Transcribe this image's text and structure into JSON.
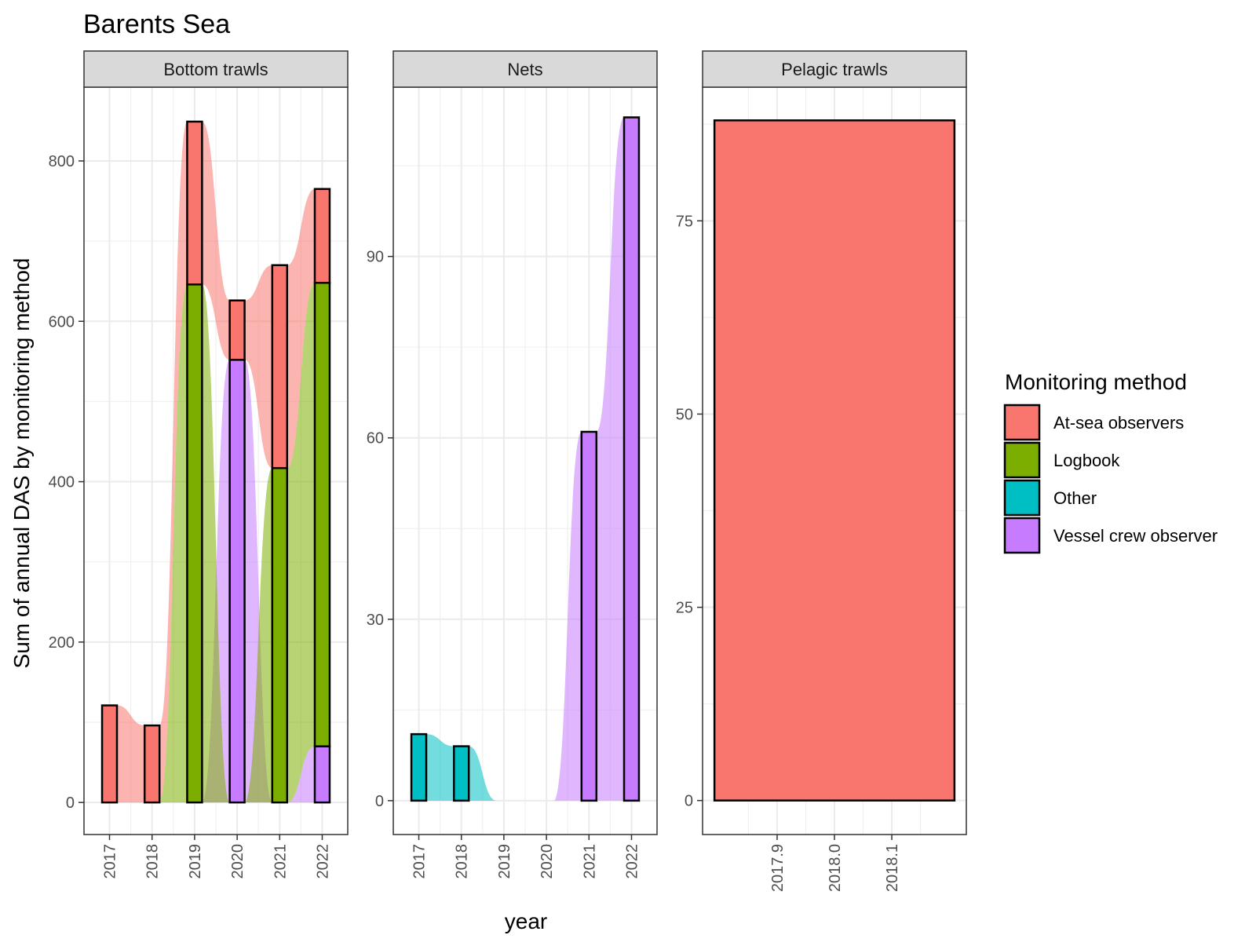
{
  "chart_data": {
    "type": "bar",
    "title": "Barents Sea",
    "xlabel": "year",
    "ylabel": "Sum of annual DAS by monitoring method",
    "legend": {
      "title": "Monitoring method",
      "position": "right",
      "entries": [
        {
          "name": "At-sea observers",
          "color": "#F8766D"
        },
        {
          "name": "Logbook",
          "color": "#7CAE00"
        },
        {
          "name": "Other",
          "color": "#00BFC4"
        },
        {
          "name": "Vessel crew observer",
          "color": "#C77CFF"
        }
      ]
    },
    "grid": true,
    "stacked": true,
    "panels": [
      {
        "strip": "Bottom trawls",
        "x_ticks": [
          "2017",
          "2018",
          "2019",
          "2020",
          "2021",
          "2022"
        ],
        "y_ticks": [
          "0",
          "200",
          "400",
          "600",
          "800"
        ],
        "y_tick_values": [
          0,
          200,
          400,
          600,
          800
        ],
        "ylim": [
          -40,
          892
        ],
        "categories": [
          "2017",
          "2018",
          "2019",
          "2020",
          "2021",
          "2022"
        ],
        "series": [
          {
            "name": "Vessel crew observer",
            "values": [
              0,
              0,
              0,
              552,
              0,
              70
            ]
          },
          {
            "name": "Other",
            "values": [
              0,
              0,
              0,
              0,
              0,
              0
            ]
          },
          {
            "name": "Logbook",
            "values": [
              0,
              0,
              646,
              0,
              417,
              578
            ]
          },
          {
            "name": "At-sea observers",
            "values": [
              121,
              96,
              203,
              74,
              253,
              117
            ]
          }
        ]
      },
      {
        "strip": "Nets",
        "x_ticks": [
          "2017",
          "2018",
          "2019",
          "2020",
          "2021",
          "2022"
        ],
        "y_ticks": [
          "0",
          "30",
          "60",
          "90"
        ],
        "y_tick_values": [
          0,
          30,
          60,
          90
        ],
        "ylim": [
          -5.6,
          118
        ],
        "categories": [
          "2017",
          "2018",
          "2019",
          "2020",
          "2021",
          "2022"
        ],
        "series": [
          {
            "name": "Vessel crew observer",
            "values": [
              0,
              0,
              0,
              0,
              61,
              113
            ]
          },
          {
            "name": "Other",
            "values": [
              11,
              9,
              0,
              0,
              0,
              0
            ]
          },
          {
            "name": "Logbook",
            "values": [
              0,
              0,
              0,
              0,
              0,
              0
            ]
          },
          {
            "name": "At-sea observers",
            "values": [
              0,
              0,
              0,
              0,
              0,
              0
            ]
          }
        ]
      },
      {
        "strip": "Pelagic trawls",
        "x_ticks": [
          "2017.9",
          "2018.0",
          "2018.1"
        ],
        "y_ticks": [
          "0",
          "25",
          "50",
          "75"
        ],
        "y_tick_values": [
          0,
          25,
          50,
          75
        ],
        "ylim": [
          -4.4,
          92.3
        ],
        "x_range": [
          2017.77,
          2018.23
        ],
        "bar": {
          "category": 2018,
          "series": "At-sea observers",
          "value": 88,
          "width": 0.9
        }
      }
    ]
  }
}
